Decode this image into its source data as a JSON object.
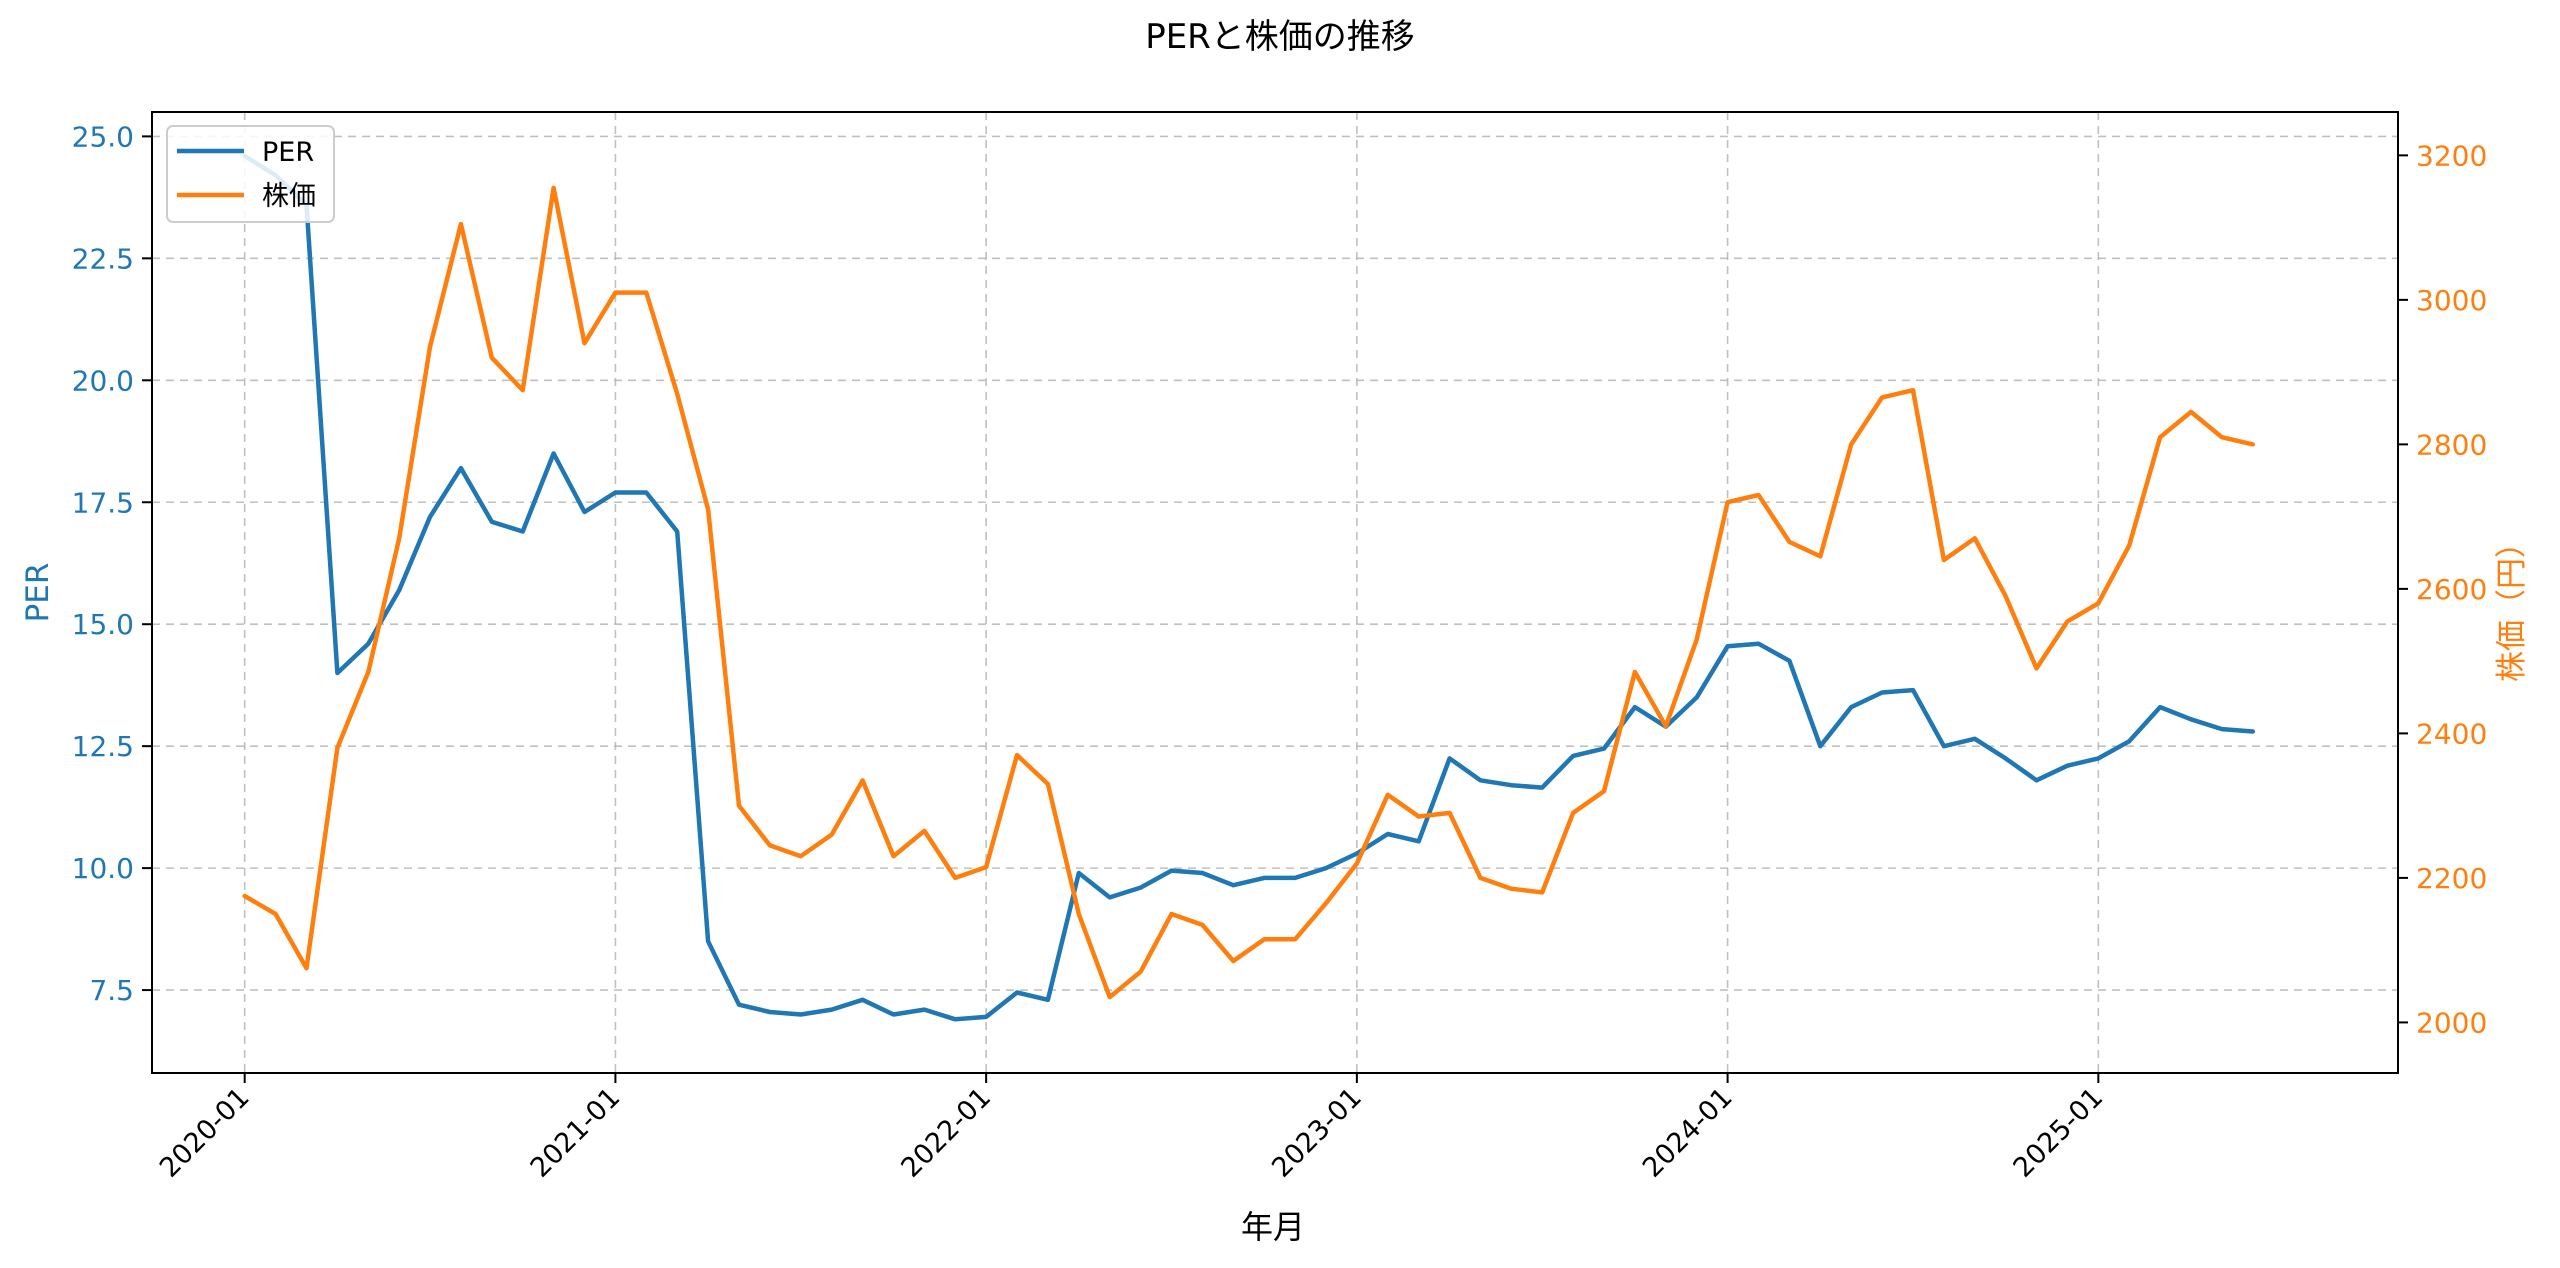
{
  "colors": {
    "per": "#1f77b4",
    "price": "#ff7f0e",
    "grid": "#b0b0b0",
    "axis": "#000000"
  },
  "chart_data": {
    "type": "line",
    "title": "PERと株価の推移",
    "xlabel": "年月",
    "ylabel_left": "PER",
    "ylabel_right": "株価（円）",
    "grid": true,
    "legend_position": "top-left",
    "x_ticks": [
      "2020-01",
      "2021-01",
      "2022-01",
      "2023-01",
      "2024-01",
      "2025-01"
    ],
    "y_left_ticks": [
      "7.5",
      "10.0",
      "12.5",
      "15.0",
      "17.5",
      "20.0",
      "22.5",
      "25.0"
    ],
    "y_right_ticks": [
      "2000",
      "2200",
      "2400",
      "2600",
      "2800",
      "3000",
      "3200"
    ],
    "y_left_range": [
      5.8,
      25.5
    ],
    "y_right_range": [
      1930,
      3260
    ],
    "x_range": [
      -3,
      69.7
    ],
    "x": [
      "2020-01",
      "2020-02",
      "2020-03",
      "2020-04",
      "2020-05",
      "2020-06",
      "2020-07",
      "2020-08",
      "2020-09",
      "2020-10",
      "2020-11",
      "2020-12",
      "2021-01",
      "2021-02",
      "2021-03",
      "2021-04",
      "2021-05",
      "2021-06",
      "2021-07",
      "2021-08",
      "2021-09",
      "2021-10",
      "2021-11",
      "2021-12",
      "2022-01",
      "2022-02",
      "2022-03",
      "2022-04",
      "2022-05",
      "2022-06",
      "2022-07",
      "2022-08",
      "2022-09",
      "2022-10",
      "2022-11",
      "2022-12",
      "2023-01",
      "2023-02",
      "2023-03",
      "2023-04",
      "2023-05",
      "2023-06",
      "2023-07",
      "2023-08",
      "2023-09",
      "2023-10",
      "2023-11",
      "2023-12",
      "2024-01",
      "2024-02",
      "2024-03",
      "2024-04",
      "2024-05",
      "2024-06",
      "2024-07",
      "2024-08",
      "2024-09",
      "2024-10",
      "2024-11",
      "2024-12",
      "2025-01",
      "2025-02",
      "2025-03",
      "2025-04",
      "2025-05",
      "2025-06"
    ],
    "series": [
      {
        "name": "PER",
        "axis": "left",
        "values": [
          24.6,
          24.2,
          23.6,
          14.0,
          14.6,
          15.7,
          17.2,
          18.2,
          17.1,
          16.9,
          18.5,
          17.3,
          17.7,
          17.7,
          16.9,
          8.5,
          7.2,
          7.05,
          7.0,
          7.1,
          7.3,
          7.0,
          7.1,
          6.9,
          6.95,
          7.45,
          7.3,
          9.9,
          9.4,
          9.6,
          9.95,
          9.9,
          9.65,
          9.8,
          9.8,
          10.0,
          10.3,
          10.7,
          10.55,
          12.25,
          11.8,
          11.7,
          11.65,
          12.3,
          12.45,
          13.3,
          12.9,
          13.5,
          14.55,
          14.6,
          14.25,
          12.5,
          13.3,
          13.6,
          13.65,
          12.5,
          12.65,
          12.25,
          11.8,
          12.1,
          12.25,
          12.6,
          13.3,
          13.05,
          12.85,
          12.8
        ]
      },
      {
        "name": "株価",
        "axis": "right",
        "values": [
          2175,
          2150,
          2075,
          2380,
          2485,
          2670,
          2935,
          3105,
          2920,
          2875,
          3155,
          2940,
          3010,
          3010,
          2870,
          2710,
          2300,
          2245,
          2230,
          2260,
          2335,
          2230,
          2265,
          2200,
          2215,
          2370,
          2330,
          2150,
          2035,
          2070,
          2150,
          2135,
          2085,
          2115,
          2115,
          2165,
          2220,
          2315,
          2285,
          2290,
          2200,
          2185,
          2180,
          2290,
          2320,
          2485,
          2410,
          2530,
          2720,
          2730,
          2665,
          2645,
          2800,
          2865,
          2875,
          2640,
          2670,
          2590,
          2490,
          2555,
          2580,
          2660,
          2810,
          2845,
          2810,
          2800
        ]
      }
    ]
  }
}
